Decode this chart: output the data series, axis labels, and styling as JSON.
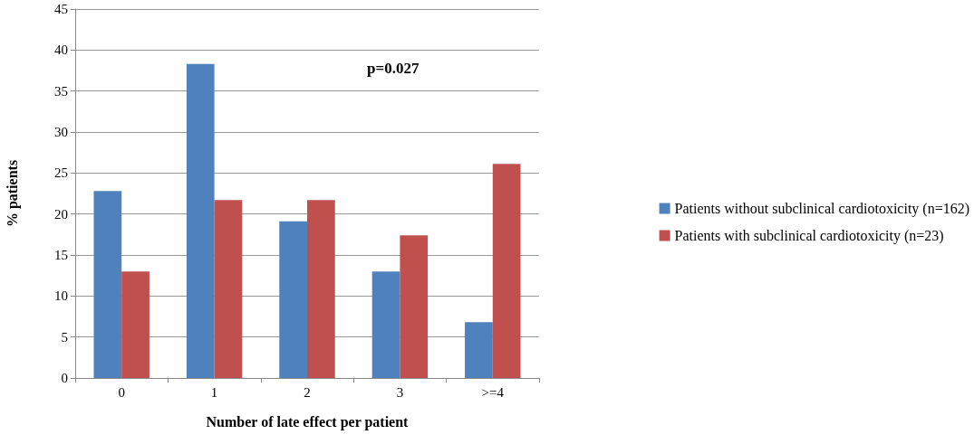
{
  "chart_data": {
    "type": "bar",
    "xlabel": "Number of late effect per patient",
    "ylabel": "% patients",
    "categories": [
      "0",
      "1",
      "2",
      "3",
      ">=4"
    ],
    "series": [
      {
        "name": "Patients without subclinical cardiotoxicity (n=162)",
        "color": "#4f81bd",
        "values": [
          22.8,
          38.3,
          19.1,
          13.0,
          6.8
        ]
      },
      {
        "name": "Patients with subclinical cardiotoxicity (n=23)",
        "color": "#c0504d",
        "values": [
          13.0,
          21.7,
          21.7,
          17.4,
          26.1
        ]
      }
    ],
    "ylim": [
      0,
      45
    ],
    "yticks": [
      0,
      5,
      10,
      15,
      20,
      25,
      30,
      35,
      40,
      45
    ],
    "grid": "y",
    "legend": "right",
    "annotations": [
      "p=0.027"
    ]
  }
}
